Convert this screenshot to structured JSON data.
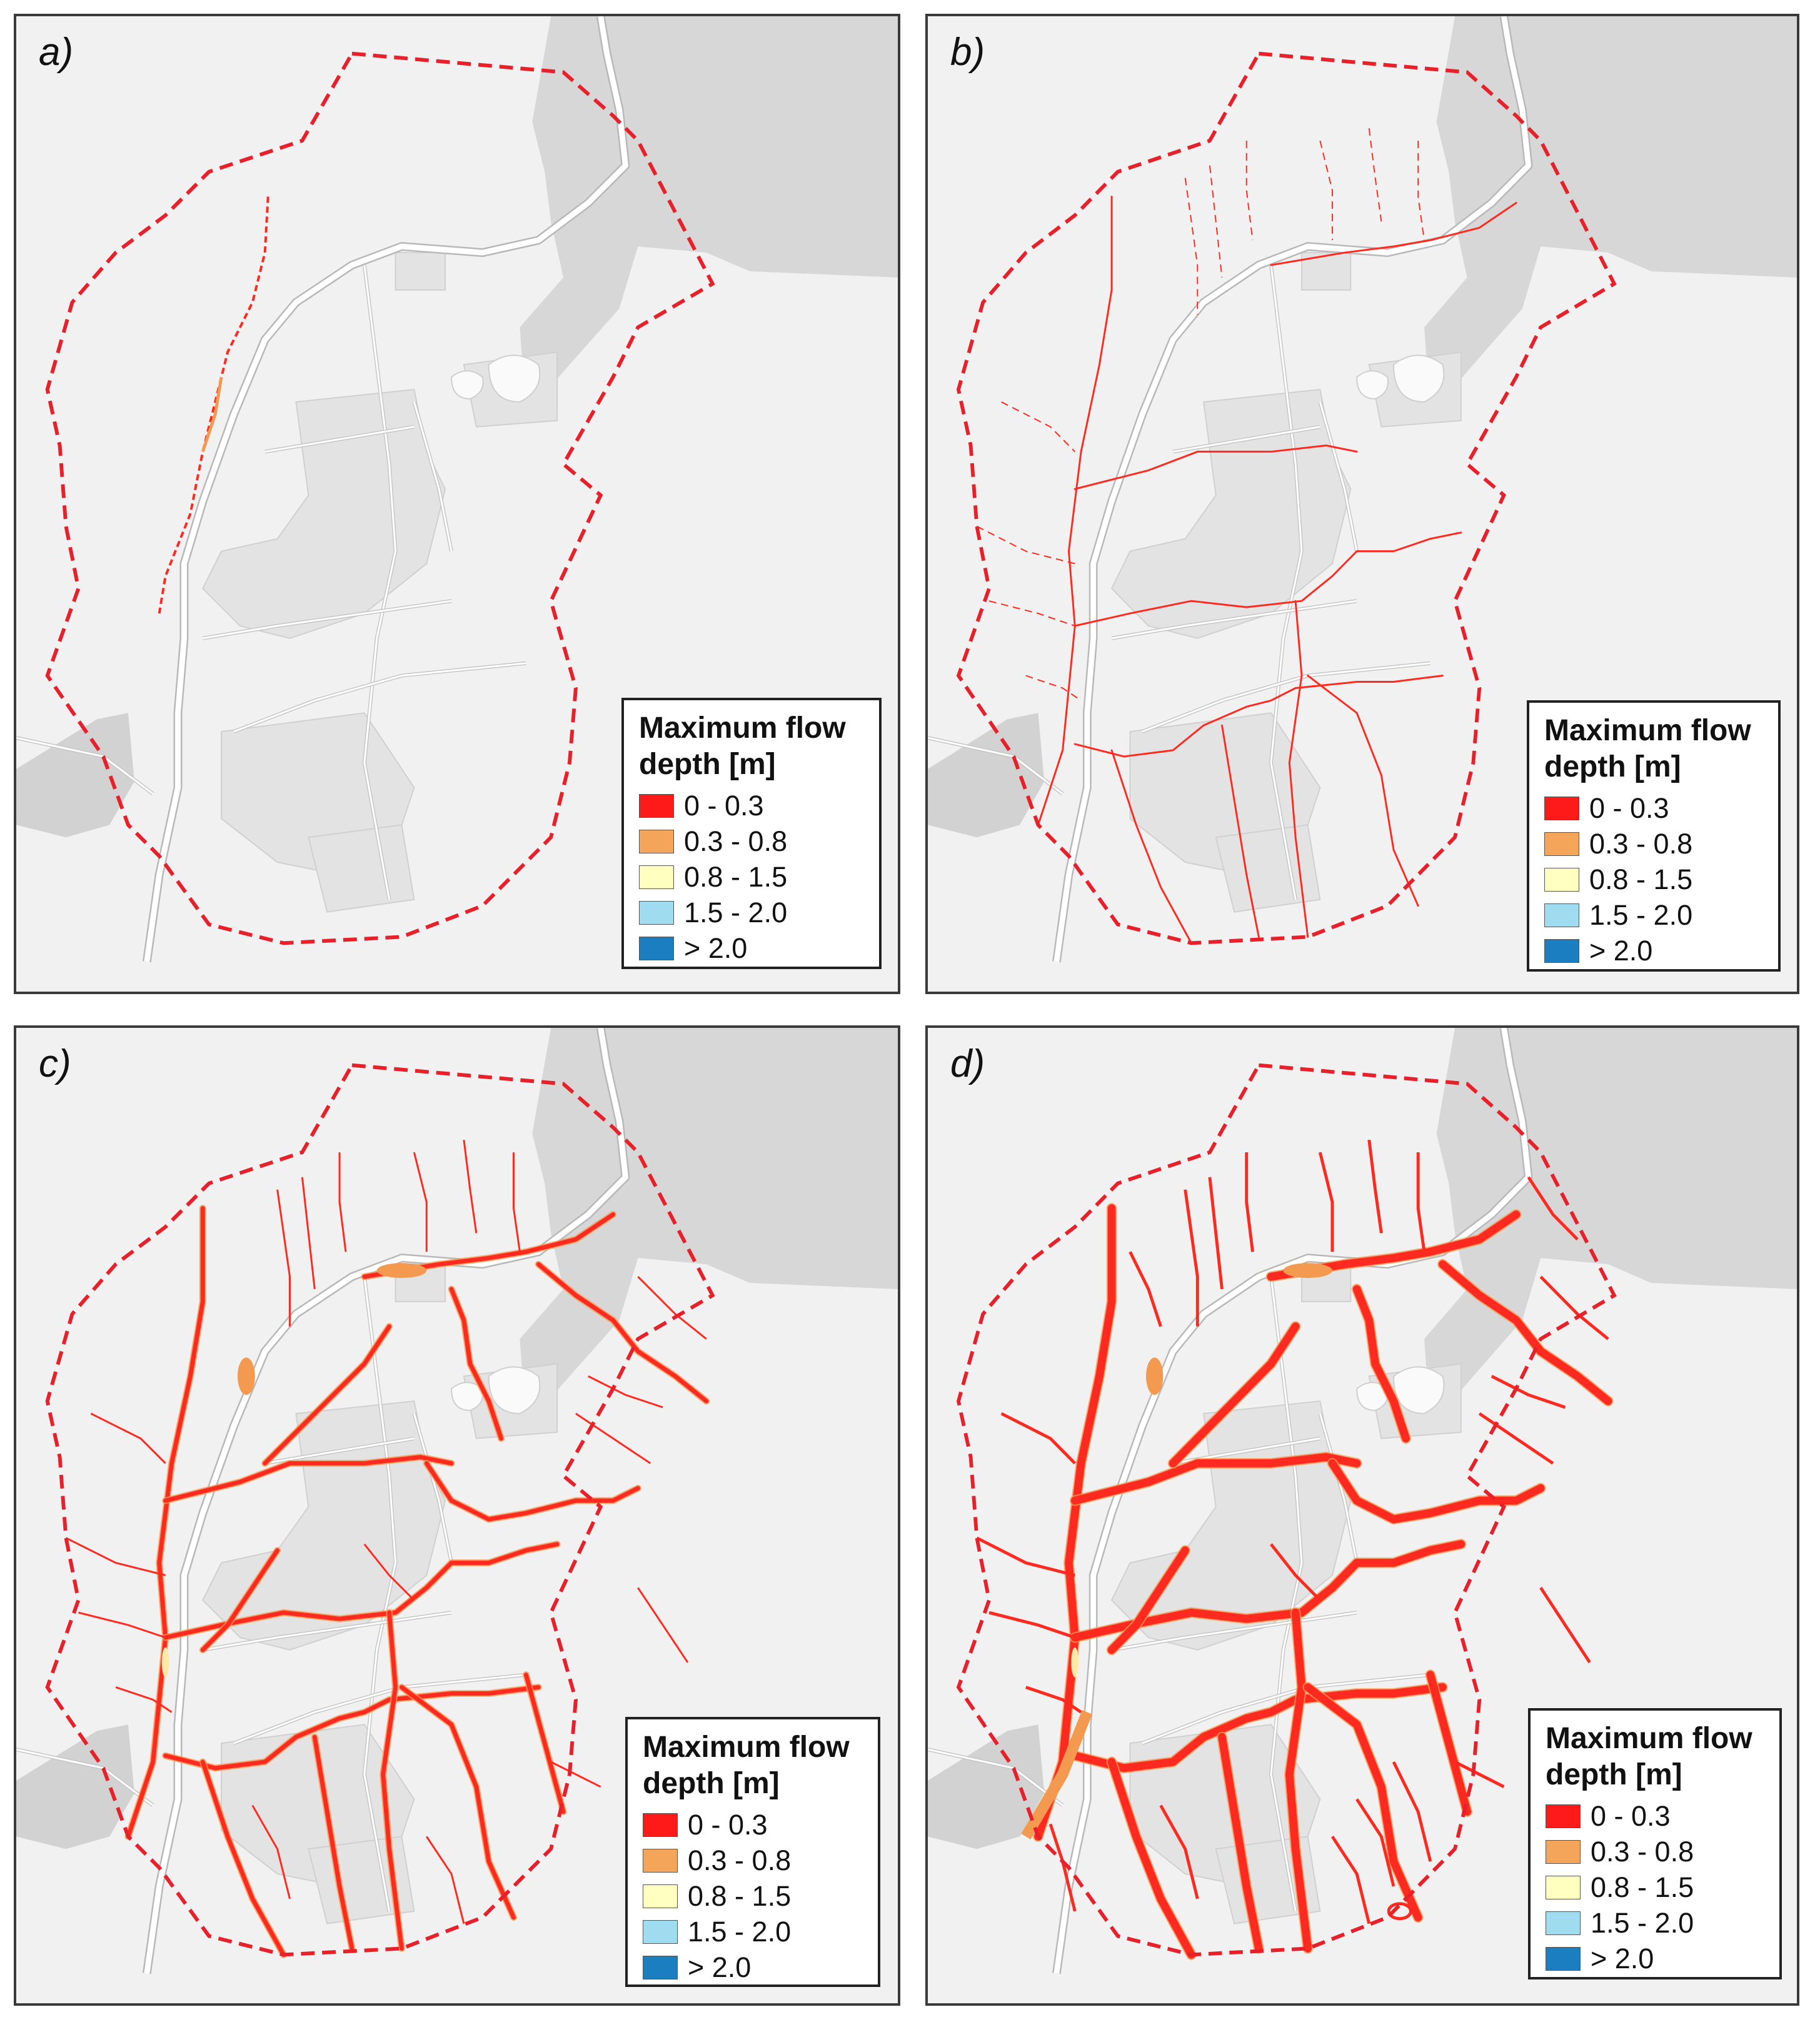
{
  "figure": {
    "panels": [
      {
        "id": "a",
        "label": "a)",
        "intensity": 0
      },
      {
        "id": "b",
        "label": "b)",
        "intensity": 1
      },
      {
        "id": "c",
        "label": "c)",
        "intensity": 2
      },
      {
        "id": "d",
        "label": "d)",
        "intensity": 3
      }
    ],
    "legend": {
      "title_line1": "Maximum flow",
      "title_line2": "depth [m]",
      "classes": [
        {
          "label": "0 - 0.3",
          "color": "#ff1a1a"
        },
        {
          "label": "0.3 - 0.8",
          "color": "#f5a55a"
        },
        {
          "label": "0.8 - 1.5",
          "color": "#ffffc0"
        },
        {
          "label": "1.5 - 2.0",
          "color": "#9fdcef"
        },
        {
          "label": "> 2.0",
          "color": "#1a7ec0"
        }
      ]
    },
    "boundary_color": "#e8202a",
    "flood_colors": {
      "shallow": "#ff2a1f",
      "medium": "#f39a50",
      "light": "#ffe9a8"
    },
    "basemap_colors": {
      "background": "#f1f1f1",
      "forest": "#d7d7d7",
      "builtup": "#e3e3e3",
      "road": "#ffffff",
      "road_edge": "#b8b8b8"
    }
  }
}
